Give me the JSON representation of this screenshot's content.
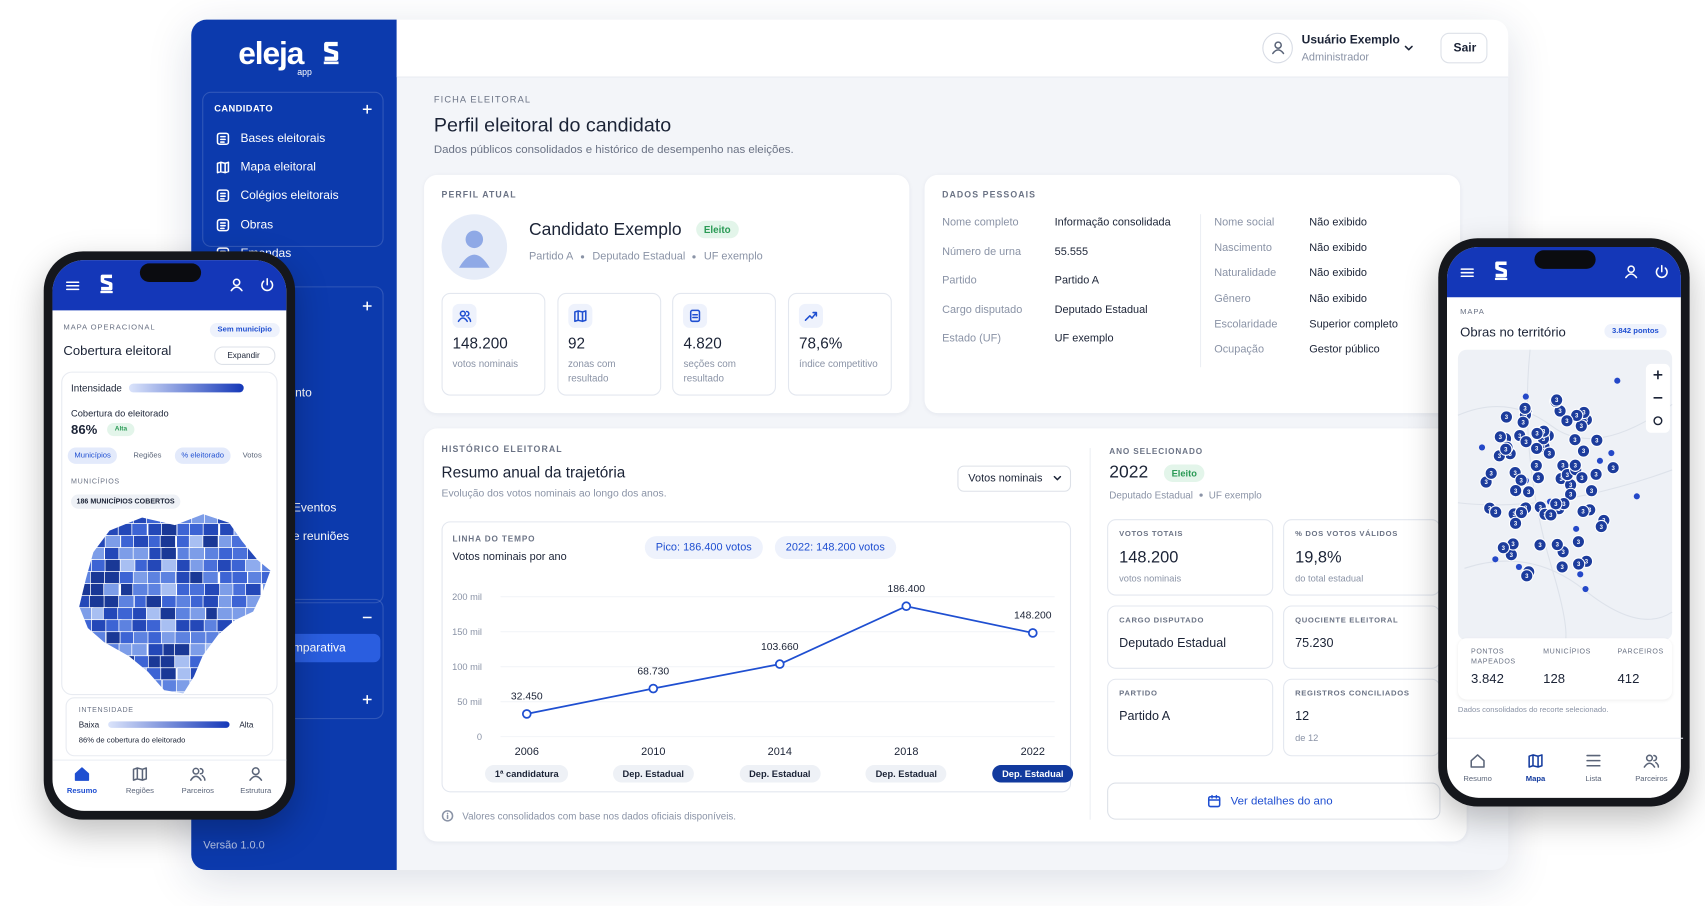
{
  "sidebar": {
    "brand": "eleja",
    "brand_sub": "app",
    "section": "CANDIDATO",
    "items": [
      "Bases eleitorais",
      "Mapa eleitoral",
      "Colégios eleitorais",
      "Obras",
      "Emendas"
    ],
    "partial_items": [
      "nto",
      "Eventos",
      "e reuniões",
      "mparativa"
    ],
    "version": "Versão 1.0.0"
  },
  "header": {
    "user": "Usuário Exemplo",
    "role": "Administrador",
    "logout": "Sair"
  },
  "page": {
    "eyebrow": "FICHA ELEITORAL",
    "title": "Perfil eleitoral do candidato",
    "subtitle": "Dados públicos consolidados e histórico de desempenho nas eleições."
  },
  "profile": {
    "eyebrow": "PERFIL ATUAL",
    "name": "Candidato Exemplo",
    "status": "Eleito",
    "meta": [
      "Partido A",
      "Deputado Estadual",
      "UF exemplo"
    ],
    "stats": [
      {
        "value": "148.200",
        "label": "votos nominais"
      },
      {
        "value": "92",
        "label": "zonas com resultado"
      },
      {
        "value": "4.820",
        "label": "seções com resultado"
      },
      {
        "value": "78,6%",
        "label": "índice competitivo"
      }
    ]
  },
  "personal": {
    "eyebrow": "DADOS PESSOAIS",
    "left": [
      [
        "Nome completo",
        "Informação consolidada"
      ],
      [
        "Número de urna",
        "55.555"
      ],
      [
        "Partido",
        "Partido A"
      ],
      [
        "Cargo disputado",
        "Deputado Estadual"
      ],
      [
        "Estado (UF)",
        "UF exemplo"
      ]
    ],
    "right": [
      [
        "Nome social",
        "Não exibido"
      ],
      [
        "Nascimento",
        "Não exibido"
      ],
      [
        "Naturalidade",
        "Não exibido"
      ],
      [
        "Gênero",
        "Não exibido"
      ],
      [
        "Escolaridade",
        "Superior completo"
      ],
      [
        "Ocupação",
        "Gestor público"
      ]
    ]
  },
  "history": {
    "eyebrow": "HISTÓRICO ELEITORAL",
    "title": "Resumo anual da trajetória",
    "subtitle": "Evolução dos votos nominais ao longo dos anos.",
    "select": "Votos nominais",
    "footnote": "Valores consolidados com base nos dados oficiais disponíveis.",
    "chart": {
      "type": "line",
      "eyebrow": "LINHA DO TEMPO",
      "title": "Votos nominais por ano",
      "badges": [
        "Pico: 186.400 votos",
        "2022: 148.200 votos"
      ],
      "categories": [
        "2006",
        "2010",
        "2014",
        "2018",
        "2022"
      ],
      "phases": [
        "1ª candidatura",
        "Dep. Estadual",
        "Dep. Estadual",
        "Dep. Estadual",
        "Dep. Estadual"
      ],
      "values": [
        32450,
        68730,
        103660,
        186400,
        148200
      ],
      "value_labels": [
        "32.450",
        "68.730",
        "103.660",
        "186.400",
        "148.200"
      ],
      "color": "#1f4fd1",
      "ylim": [
        0,
        200000
      ],
      "yticks": [
        0,
        {
          "value": 50000,
          "label": "50 mil"
        },
        {
          "value": 100000,
          "label": "100 mil"
        },
        {
          "value": 150000,
          "label": "150 mil"
        },
        {
          "value": 200000,
          "label": "200 mil"
        }
      ]
    }
  },
  "year": {
    "eyebrow": "ANO SELECIONADO",
    "year": "2022",
    "status": "Eleito",
    "meta": [
      "Deputado Estadual",
      "UF exemplo"
    ],
    "cards": [
      {
        "label": "VOTOS TOTAIS",
        "value": "148.200",
        "note": "votos nominais"
      },
      {
        "label": "% DOS VOTOS VÁLIDOS",
        "value": "19,8%",
        "note": "do total estadual"
      },
      {
        "label": "CARGO DISPUTADO",
        "value": "Deputado Estadual"
      },
      {
        "label": "QUOCIENTE ELEITORAL",
        "value": "75.230"
      },
      {
        "label": "PARTIDO",
        "value": "Partido A"
      },
      {
        "label": "REGISTROS CONCILIADOS",
        "value": "12",
        "note": "de 12"
      }
    ],
    "button": "Ver detalhes do ano"
  },
  "phone_left": {
    "eyebrow": "MAPA OPERACIONAL",
    "chip": "Sem município",
    "title": "Cobertura eleitoral",
    "expand": "Expandir",
    "intensity": "Intensidade",
    "coverage_label": "Cobertura do eleitorado",
    "coverage": "86%",
    "coverage_tag": "Alta",
    "tabs": [
      "Municípios",
      "Regiões",
      "% eleitorado",
      "Votos"
    ],
    "municipios": "MUNICÍPIOS",
    "count_chip": "186 MUNICÍPIOS COBERTOS",
    "legend_title": "INTENSIDADE",
    "low": "Baixa",
    "high": "Alta",
    "legend_note": "86% de cobertura do eleitorado",
    "nav": [
      "Resumo",
      "Regiões",
      "Parceiros",
      "Estrutura"
    ]
  },
  "phone_right": {
    "eyebrow": "MAPA",
    "title": "Obras no território",
    "chip": "3.842 pontos",
    "cluster": "3",
    "stats": [
      {
        "label": "PONTOS MAPEADOS",
        "value": "3.842"
      },
      {
        "label": "MUNICÍPIOS",
        "value": "128"
      },
      {
        "label": "PARCEIROS",
        "value": "412"
      }
    ],
    "note": "Dados consolidados do recorte selecionado.",
    "nav": [
      "Resumo",
      "Mapa",
      "Lista",
      "Parceiros"
    ]
  }
}
